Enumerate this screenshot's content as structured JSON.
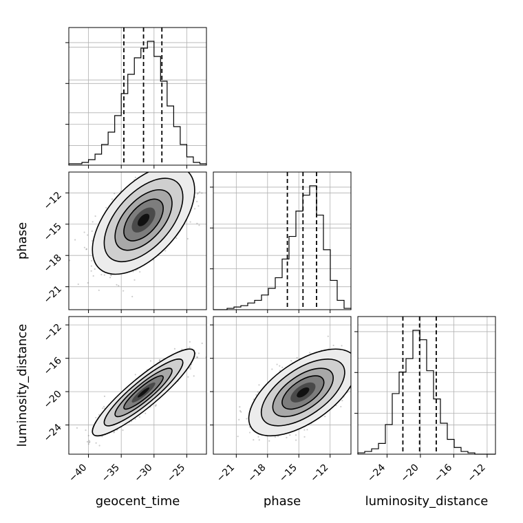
{
  "chart_data": {
    "type": "corner",
    "parameters": [
      "geocent_time",
      "phase",
      "luminosity_distance"
    ],
    "xlabels": [
      "geocent_time",
      "phase",
      "luminosity_distance"
    ],
    "ylabels": [
      "",
      "phase",
      "luminosity_distance"
    ],
    "grid": true,
    "ranges": {
      "geocent_time": [
        -43,
        -22
      ],
      "phase": [
        -23.2,
        -10.0
      ],
      "luminosity_distance": [
        -27.5,
        -11.0
      ]
    },
    "ticks": {
      "geocent_time": [
        -40,
        -35,
        -30,
        -25
      ],
      "phase": [
        -21,
        -18,
        -15,
        -12
      ],
      "luminosity_distance": [
        -24,
        -20,
        -16,
        -12
      ]
    },
    "quantiles": {
      "geocent_time": [
        -34.6,
        -31.6,
        -28.8
      ],
      "phase": [
        -16.1,
        -14.6,
        -13.3
      ],
      "luminosity_distance": [
        -22.1,
        -20.1,
        -18.1
      ]
    },
    "histograms": {
      "geocent_time": {
        "edges": [
          -43.0,
          -42.0,
          -41.0,
          -40.0,
          -39.0,
          -38.0,
          -37.0,
          -36.0,
          -35.0,
          -34.0,
          -33.0,
          -32.0,
          -31.0,
          -30.0,
          -29.0,
          -28.0,
          -27.0,
          -26.0,
          -25.0,
          -24.0,
          -23.0,
          -22.0
        ],
        "counts": [
          0.01,
          0.01,
          0.02,
          0.04,
          0.08,
          0.15,
          0.24,
          0.36,
          0.52,
          0.66,
          0.78,
          0.85,
          0.9,
          0.79,
          0.61,
          0.43,
          0.28,
          0.15,
          0.06,
          0.02,
          0.01
        ]
      },
      "phase": {
        "edges": [
          -23.2,
          -22.54,
          -21.88,
          -21.22,
          -20.56,
          -19.9,
          -19.24,
          -18.58,
          -17.92,
          -17.26,
          -16.6,
          -15.94,
          -15.28,
          -14.62,
          -13.96,
          -13.3,
          -12.64,
          -11.98,
          -11.32,
          -10.66,
          -10.0
        ],
        "counts": [
          0.0,
          0.0,
          0.01,
          0.02,
          0.03,
          0.05,
          0.07,
          0.11,
          0.16,
          0.24,
          0.38,
          0.55,
          0.74,
          0.86,
          0.93,
          0.71,
          0.45,
          0.22,
          0.07,
          0.01
        ]
      },
      "luminosity_distance": {
        "edges": [
          -27.5,
          -26.675,
          -25.85,
          -25.025,
          -24.2,
          -23.375,
          -22.55,
          -21.725,
          -20.9,
          -20.075,
          -19.25,
          -18.425,
          -17.6,
          -16.775,
          -15.95,
          -15.125,
          -14.3,
          -13.475,
          -12.65,
          -11.825,
          -11.0
        ],
        "counts": [
          0.01,
          0.02,
          0.04,
          0.08,
          0.22,
          0.45,
          0.61,
          0.71,
          0.92,
          0.85,
          0.62,
          0.41,
          0.23,
          0.11,
          0.05,
          0.02,
          0.01,
          0.0,
          0.0,
          0.0
        ]
      }
    },
    "pairs": [
      {
        "x": "geocent_time",
        "y": "phase",
        "mean": [
          -31.6,
          -14.6
        ],
        "sd": [
          3.0,
          2.0
        ],
        "corr": 0.55
      },
      {
        "x": "geocent_time",
        "y": "luminosity_distance",
        "mean": [
          -31.6,
          -20.1
        ],
        "sd": [
          3.0,
          2.0
        ],
        "corr": 0.9
      },
      {
        "x": "phase",
        "y": "luminosity_distance",
        "mean": [
          -14.6,
          -20.1
        ],
        "sd": [
          2.0,
          2.0
        ],
        "corr": 0.6
      }
    ]
  },
  "colors": {
    "line": "#000000",
    "grid": "#b0b0b0",
    "points": "#6e6e6e",
    "density_shades": [
      "#ececec",
      "#cfcfcf",
      "#a8a8a8",
      "#7d7d7d",
      "#4a4a4a",
      "#111111"
    ]
  }
}
